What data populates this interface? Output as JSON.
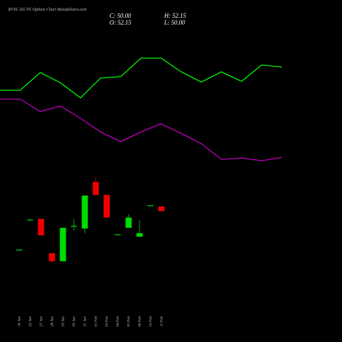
{
  "header": {
    "title": "BVNL 565 PE Options Chart MunafaSutra.com",
    "ohlc": [
      "C: 50.00",
      "H: 52.15",
      "O: 52.15",
      "L: 50.00"
    ]
  },
  "chart_data": [
    {
      "type": "line",
      "x": [
        0,
        1,
        2,
        3,
        4,
        5,
        6,
        7,
        8,
        9,
        10,
        11,
        12,
        13,
        14
      ],
      "xlim": [
        0,
        14
      ],
      "ylim": [
        0,
        100
      ],
      "series": [
        {
          "color": "#00ff00",
          "values": [
            64,
            64,
            77,
            69.5,
            58.5,
            73,
            74,
            87.5,
            87.5,
            77.5,
            70,
            77.5,
            70.5,
            82.5,
            81
          ]
        },
        {
          "color": "#c000c0",
          "values": [
            57.5,
            57.5,
            48.5,
            52.5,
            43.5,
            33.5,
            26.5,
            33.5,
            39.5,
            32.5,
            25,
            13.5,
            14.5,
            12.5,
            15
          ]
        }
      ]
    },
    {
      "type": "candlestick",
      "categories": [
        "16 Jan",
        "22 Jan",
        "27 Jan",
        "28 Jan",
        "29 Jan",
        "30 Jan",
        "31 Jan",
        "01 Feb",
        "03 Feb",
        "04 Feb",
        "05 Feb",
        "06 Feb",
        "10 Feb",
        "11 Feb"
      ],
      "open": [
        32.7,
        45.9,
        46.5,
        31.1,
        27.5,
        43.1,
        42.2,
        63.1,
        57.3,
        39.4,
        42.5,
        38.5,
        52.4,
        52.15
      ],
      "high": [
        32.7,
        46.5,
        46.5,
        31.1,
        42.5,
        46.5,
        57.0,
        65.3,
        57.3,
        39.6,
        48.7,
        45.9,
        52.6,
        52.15
      ],
      "low": [
        32.7,
        45.9,
        39.1,
        26.8,
        27.5,
        41.3,
        40.1,
        57.3,
        47.1,
        39.4,
        42.5,
        38.5,
        52.4,
        50.0
      ],
      "close": [
        32.7,
        46.2,
        39.1,
        27.5,
        42.5,
        43.4,
        57.0,
        57.3,
        47.1,
        39.6,
        47.1,
        40.1,
        52.6,
        50.0
      ],
      "up_color": "#00dd00",
      "down_color": "#ee0000",
      "ylim": [
        25,
        66.5
      ]
    }
  ]
}
